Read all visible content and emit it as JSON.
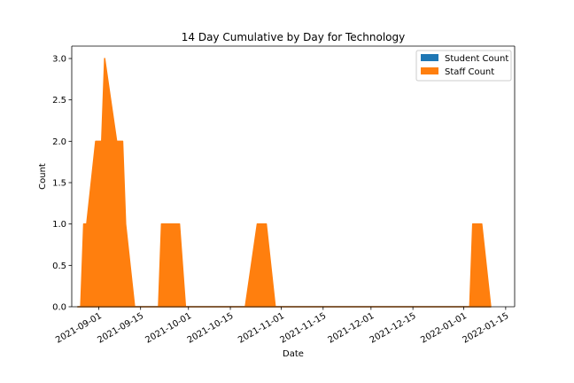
{
  "chart_data": {
    "type": "area",
    "title": "14 Day Cumulative by Day for Technology",
    "xlabel": "Date",
    "ylabel": "Count",
    "ylim": [
      0,
      3.15
    ],
    "xlim": [
      "2021-08-23",
      "2022-01-18"
    ],
    "grid": false,
    "legend_position": "top-right",
    "y_ticks": [
      "0.0",
      "0.5",
      "1.0",
      "1.5",
      "2.0",
      "2.5",
      "3.0"
    ],
    "x_ticks": [
      "2021-09-01",
      "2021-09-15",
      "2021-10-01",
      "2021-10-15",
      "2021-11-01",
      "2021-11-15",
      "2021-12-01",
      "2021-12-15",
      "2022-01-01",
      "2022-01-15"
    ],
    "series": [
      {
        "name": "Student Count",
        "color": "#1f77b4",
        "points": [
          [
            "2021-08-25",
            0
          ],
          [
            "2022-01-10",
            0
          ]
        ]
      },
      {
        "name": "Staff Count",
        "color": "#ff7f0e",
        "points": [
          [
            "2021-08-25",
            0
          ],
          [
            "2021-08-26",
            0
          ],
          [
            "2021-08-27",
            1
          ],
          [
            "2021-08-28",
            1
          ],
          [
            "2021-08-31",
            2
          ],
          [
            "2021-09-02",
            2
          ],
          [
            "2021-09-03",
            3
          ],
          [
            "2021-09-07",
            2
          ],
          [
            "2021-09-09",
            2
          ],
          [
            "2021-09-10",
            1
          ],
          [
            "2021-09-13",
            0
          ],
          [
            "2021-09-21",
            0
          ],
          [
            "2021-09-22",
            1
          ],
          [
            "2021-09-28",
            1
          ],
          [
            "2021-09-30",
            0
          ],
          [
            "2021-10-20",
            0
          ],
          [
            "2021-10-24",
            1
          ],
          [
            "2021-10-27",
            1
          ],
          [
            "2021-10-30",
            0
          ],
          [
            "2022-01-03",
            0
          ],
          [
            "2022-01-04",
            1
          ],
          [
            "2022-01-07",
            1
          ],
          [
            "2022-01-10",
            0
          ]
        ]
      }
    ]
  }
}
